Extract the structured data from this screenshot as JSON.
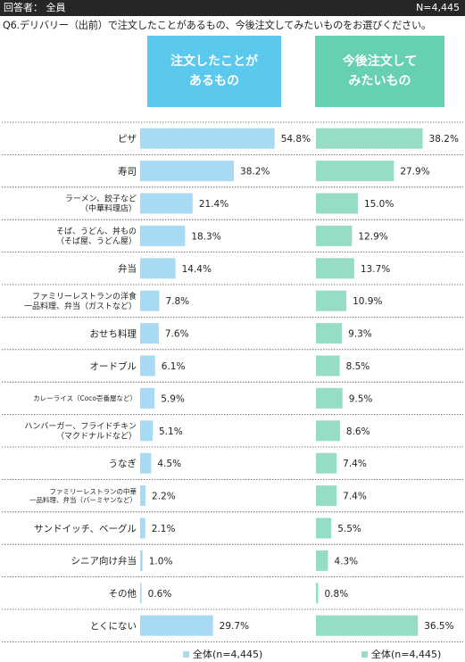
{
  "header": {
    "respondent": "回答者： 全員",
    "n": "N=4,445",
    "question": "Q6.デリバリー（出前）で注文したことがあるもの、今後注文してみたいものをお選びください。"
  },
  "columns": {
    "ordered": {
      "line1": "注文したことが",
      "line2": "あるもの"
    },
    "want": {
      "line1": "今後注文して",
      "line2": "みたいもの"
    }
  },
  "colors": {
    "ordered": "#a8daf4",
    "want": "#97dcc6",
    "header_ordered": "#5bc8ee",
    "header_want": "#66d0b1"
  },
  "legend": {
    "ordered": "全体(n=4,445)",
    "want": "全体(n=4,445)"
  },
  "chart_data": {
    "type": "bar",
    "orientation": "horizontal",
    "categories": [
      [
        "ピザ"
      ],
      [
        "寿司"
      ],
      [
        "ラーメン、餃子など",
        "（中華料理店）"
      ],
      [
        "そば、うどん、丼もの",
        "（そば屋、うどん屋）"
      ],
      [
        "弁当"
      ],
      [
        "ファミリーレストランの洋食",
        "一品料理、弁当（ガストなど）"
      ],
      [
        "おせち料理"
      ],
      [
        "オードブル"
      ],
      [
        "カレーライス（Coco壱番屋など）"
      ],
      [
        "ハンバーガー、フライドチキン",
        "（マクドナルドなど）"
      ],
      [
        "うなぎ"
      ],
      [
        "ファミリーレストランの中華",
        "一品料理、弁当（バーミヤンなど）"
      ],
      [
        "サンドイッチ、ベーグル"
      ],
      [
        "シニア向け弁当"
      ],
      [
        "その他"
      ],
      [
        "とくにない"
      ]
    ],
    "series": [
      {
        "name": "全体(n=4,445)",
        "values": [
          54.8,
          38.2,
          21.4,
          18.3,
          14.4,
          7.8,
          7.6,
          6.1,
          5.9,
          5.1,
          4.5,
          2.2,
          2.1,
          1.0,
          0.6,
          29.7
        ],
        "labels": [
          "54.8%",
          "38.2%",
          "21.4%",
          "18.3%",
          "14.4%",
          "7.8%",
          "7.6%",
          "6.1%",
          "5.9%",
          "5.1%",
          "4.5%",
          "2.2%",
          "2.1%",
          "1.0%",
          "0.6%",
          "29.7%"
        ]
      },
      {
        "name": "全体(n=4,445)",
        "values": [
          38.2,
          27.9,
          15.0,
          12.9,
          13.7,
          10.9,
          9.3,
          8.5,
          9.5,
          8.6,
          7.4,
          7.4,
          5.5,
          4.3,
          0.8,
          36.5
        ],
        "labels": [
          "38.2%",
          "27.9%",
          "15.0%",
          "12.9%",
          "13.7%",
          "10.9%",
          "9.3%",
          "8.5%",
          "9.5%",
          "8.6%",
          "7.4%",
          "7.4%",
          "5.5%",
          "4.3%",
          "0.8%",
          "36.5%"
        ]
      }
    ]
  }
}
